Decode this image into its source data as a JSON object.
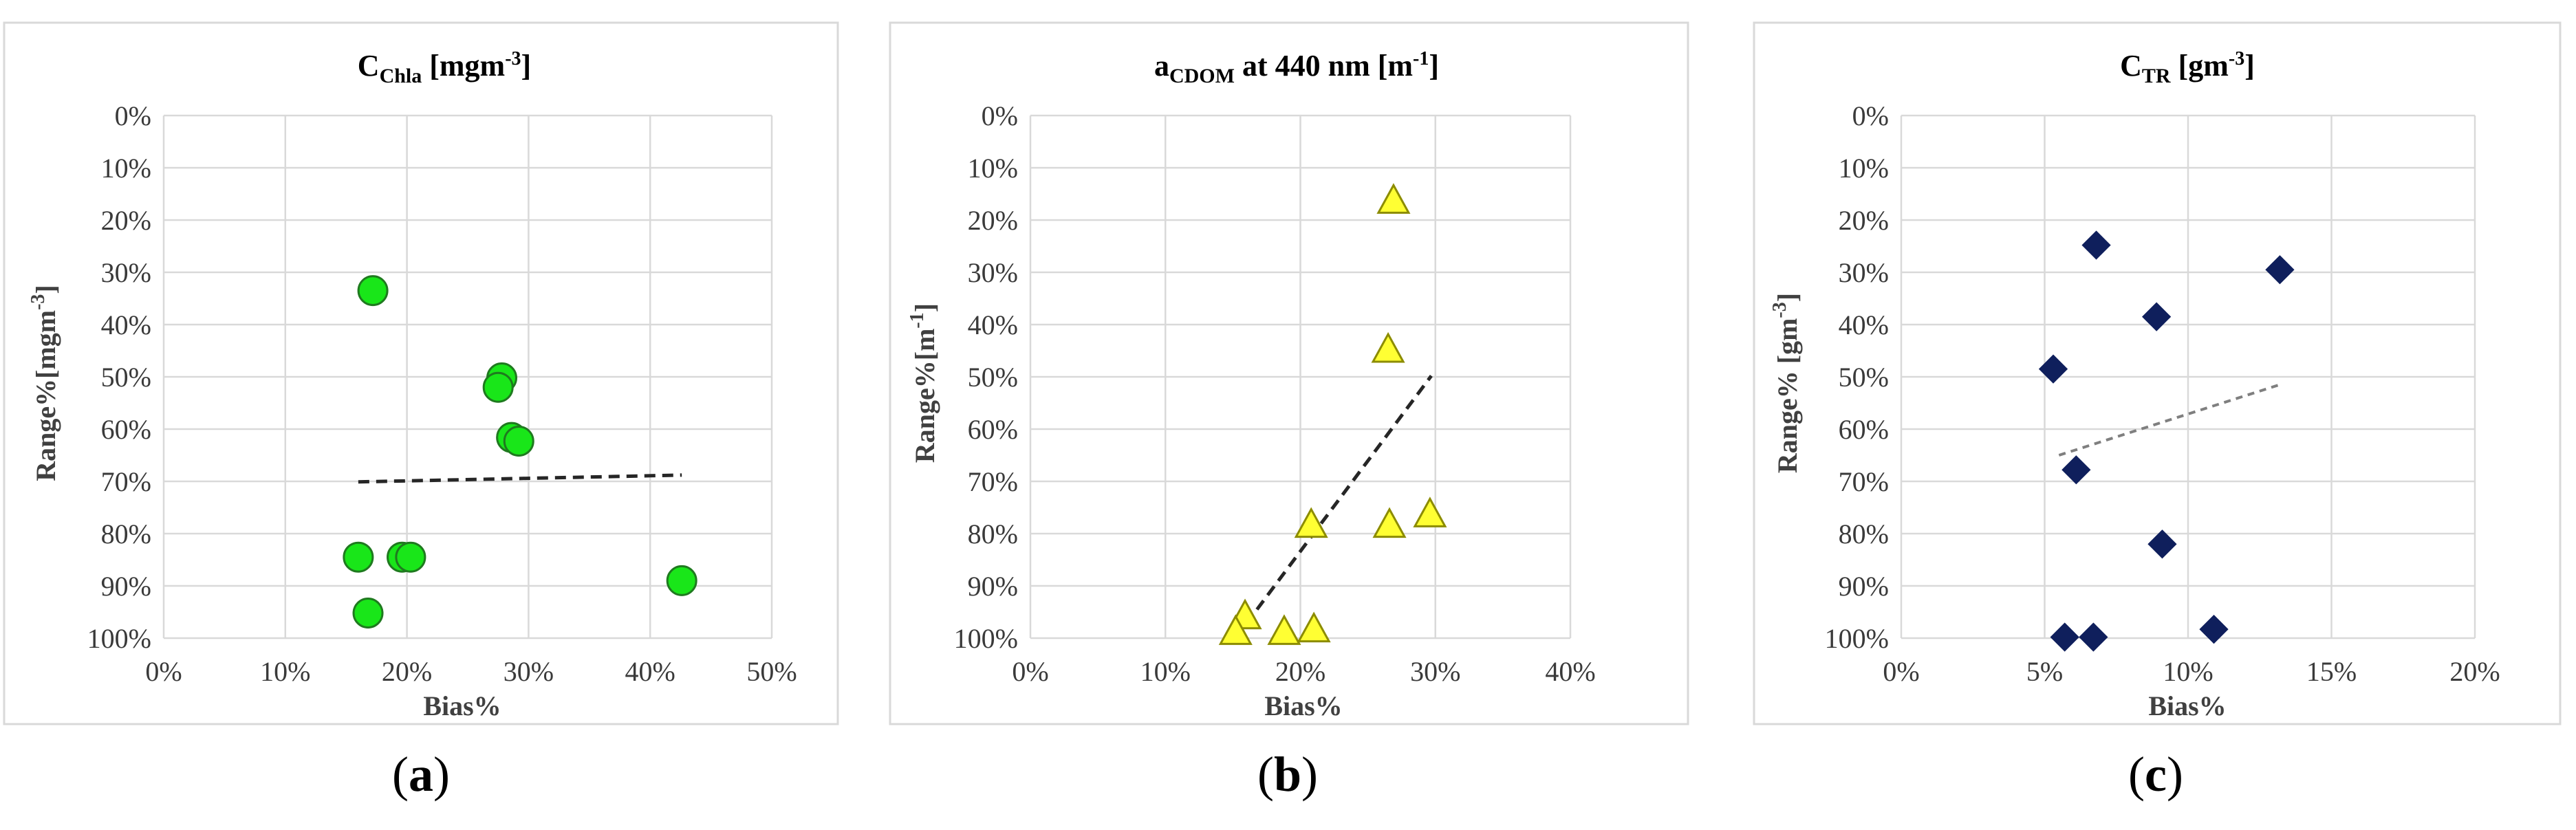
{
  "chart_data": [
    {
      "type": "scatter",
      "panel_label": "a",
      "title": {
        "main": "C",
        "sub": "Chla",
        "rest": " [mgm",
        "sup": "-3",
        "end": "]"
      },
      "xlabel": "Bias%",
      "ylabel": {
        "main": "Range%[mgm",
        "sup": "-3",
        "end": "]"
      },
      "xlim": [
        0,
        50
      ],
      "ylim": [
        0,
        100
      ],
      "y_inverted": true,
      "xticks": [
        "0%",
        "10%",
        "20%",
        "30%",
        "40%",
        "50%"
      ],
      "yticks": [
        "0%",
        "10%",
        "20%",
        "30%",
        "40%",
        "50%",
        "60%",
        "70%",
        "80%",
        "90%",
        "100%"
      ],
      "marker": "circle",
      "marker_color": "#19e619",
      "marker_stroke": "#1f7a1f",
      "points": [
        {
          "x": 17.2,
          "y": 33.5
        },
        {
          "x": 27.8,
          "y": 50.2
        },
        {
          "x": 27.5,
          "y": 52.0
        },
        {
          "x": 28.6,
          "y": 61.6
        },
        {
          "x": 29.2,
          "y": 62.3
        },
        {
          "x": 16.0,
          "y": 84.5
        },
        {
          "x": 19.6,
          "y": 84.5
        },
        {
          "x": 20.3,
          "y": 84.5
        },
        {
          "x": 16.8,
          "y": 95.2
        },
        {
          "x": 42.6,
          "y": 89.0
        }
      ],
      "trendline": {
        "x": [
          16.0,
          42.6
        ],
        "y": [
          70.1,
          68.8
        ]
      }
    },
    {
      "type": "scatter",
      "panel_label": "b",
      "title": {
        "main": "a",
        "sub": "CDOM",
        "rest": " at 440 nm [m",
        "sup": "-1",
        "end": "]"
      },
      "xlabel": "Bias%",
      "ylabel": {
        "main": "Range%[m",
        "sup": "-1",
        "end": "]"
      },
      "xlim": [
        0,
        40
      ],
      "ylim": [
        0,
        100
      ],
      "y_inverted": true,
      "xticks": [
        "0%",
        "10%",
        "20%",
        "30%",
        "40%"
      ],
      "yticks": [
        "0%",
        "10%",
        "20%",
        "30%",
        "40%",
        "50%",
        "60%",
        "70%",
        "80%",
        "90%",
        "100%"
      ],
      "marker": "triangle",
      "marker_color": "#ffff33",
      "marker_stroke": "#8c8c00",
      "points": [
        {
          "x": 26.9,
          "y": 16.5
        },
        {
          "x": 26.5,
          "y": 45.0
        },
        {
          "x": 20.8,
          "y": 78.5
        },
        {
          "x": 26.6,
          "y": 78.5
        },
        {
          "x": 29.6,
          "y": 76.5
        },
        {
          "x": 15.9,
          "y": 96.0
        },
        {
          "x": 15.2,
          "y": 99.0
        },
        {
          "x": 18.8,
          "y": 99.0
        },
        {
          "x": 21.0,
          "y": 98.5
        }
      ],
      "trendline": {
        "x": [
          15.2,
          29.7
        ],
        "y": [
          100.0,
          49.8
        ]
      }
    },
    {
      "type": "scatter",
      "panel_label": "c",
      "title": {
        "main": "C",
        "sub": "TR",
        "rest": " [gm",
        "sup": "-3",
        "end": "]"
      },
      "xlabel": "Bias%",
      "ylabel": {
        "main": "Range% [gm",
        "sup": "-3",
        "end": "]"
      },
      "xlim": [
        0,
        20
      ],
      "ylim": [
        0,
        100
      ],
      "y_inverted": true,
      "xticks": [
        "0%",
        "5%",
        "10%",
        "15%",
        "20%"
      ],
      "yticks": [
        "0%",
        "10%",
        "20%",
        "30%",
        "40%",
        "50%",
        "60%",
        "70%",
        "80%",
        "90%",
        "100%"
      ],
      "marker": "diamond",
      "marker_color": "#0f1f5c",
      "marker_stroke": "#0f1f5c",
      "points": [
        {
          "x": 6.8,
          "y": 24.8
        },
        {
          "x": 13.2,
          "y": 29.5
        },
        {
          "x": 8.9,
          "y": 38.5
        },
        {
          "x": 5.3,
          "y": 48.5
        },
        {
          "x": 6.1,
          "y": 67.8
        },
        {
          "x": 9.1,
          "y": 82.0
        },
        {
          "x": 5.7,
          "y": 99.8
        },
        {
          "x": 6.7,
          "y": 99.8
        },
        {
          "x": 10.9,
          "y": 98.3
        }
      ],
      "trendline": {
        "x": [
          5.5,
          13.2
        ],
        "y": [
          65.0,
          51.5
        ]
      }
    }
  ]
}
